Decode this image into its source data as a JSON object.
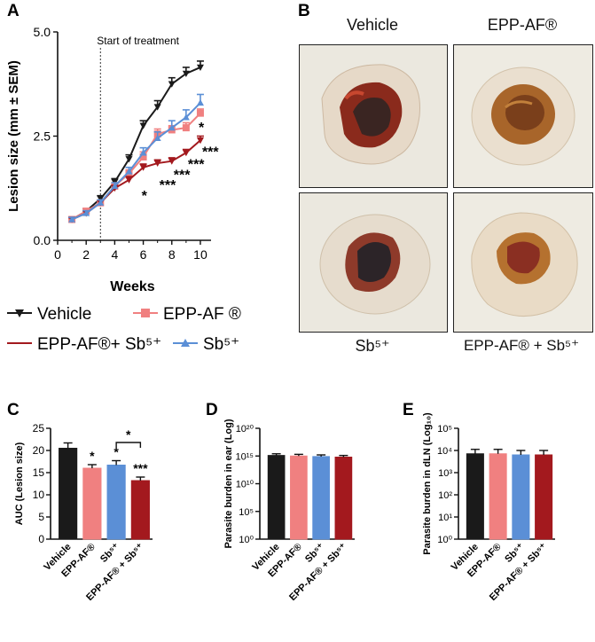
{
  "panels": {
    "A": "A",
    "B": "B",
    "C": "C",
    "D": "D",
    "E": "E"
  },
  "colors": {
    "vehicle": "#1a1a1a",
    "epp": "#f08080",
    "sb": "#5b8fd6",
    "combo": "#a3191e"
  },
  "photos": {
    "vehicle": "Vehicle",
    "epp": "EPP-AF®",
    "sb": "Sb⁵⁺",
    "combo": "EPP-AF® + Sb⁵⁺"
  },
  "chart_data": [
    {
      "id": "A",
      "type": "line",
      "title": "",
      "annotation": "Start of treatment",
      "annotation_x": 3,
      "xlabel": "Weeks",
      "ylabel": "Lesion size (mm ± SEM)",
      "xlim": [
        0,
        10.5
      ],
      "ylim": [
        0,
        5.0
      ],
      "xticks": [
        "0",
        "2",
        "4",
        "6",
        "8",
        "10"
      ],
      "yticks": [
        "0.0",
        "2.5",
        "5.0"
      ],
      "x": [
        1,
        2,
        3,
        4,
        5,
        6,
        7,
        8,
        9,
        10
      ],
      "series": [
        {
          "name": "Vehicle",
          "key": "vehicle",
          "marker": "tri-down",
          "values": [
            0.5,
            0.7,
            1.0,
            1.4,
            1.95,
            2.75,
            3.2,
            3.75,
            4.0,
            4.15
          ],
          "err": [
            0.05,
            0.06,
            0.07,
            0.08,
            0.1,
            0.12,
            0.15,
            0.15,
            0.15,
            0.15
          ]
        },
        {
          "name": "EPP-AF®",
          "key": "epp",
          "marker": "square",
          "values": [
            0.5,
            0.7,
            0.9,
            1.3,
            1.6,
            2.0,
            2.55,
            2.65,
            2.7,
            3.05
          ],
          "err": [
            0.05,
            0.06,
            0.07,
            0.08,
            0.09,
            0.12,
            0.12,
            0.1,
            0.12,
            0.1
          ]
        },
        {
          "name": "EPP-AF®+ Sb⁵⁺",
          "key": "combo",
          "marker": "tri-down",
          "values": [
            0.5,
            0.65,
            0.9,
            1.25,
            1.45,
            1.75,
            1.85,
            1.9,
            2.1,
            2.4
          ],
          "err": [
            0.04,
            0.05,
            0.06,
            0.07,
            0.08,
            0.08,
            0.08,
            0.08,
            0.08,
            0.1
          ]
        },
        {
          "name": "Sb⁵⁺",
          "key": "sb",
          "marker": "tri-up",
          "values": [
            0.5,
            0.65,
            0.9,
            1.3,
            1.65,
            2.1,
            2.45,
            2.7,
            2.95,
            3.3
          ],
          "err": [
            0.05,
            0.06,
            0.07,
            0.08,
            0.1,
            0.12,
            0.15,
            0.17,
            0.18,
            0.2
          ]
        }
      ],
      "significance": [
        {
          "text": "*",
          "x": 10,
          "y": 2.72
        },
        {
          "text": "***",
          "x": 10,
          "y": 2.14
        },
        {
          "text": "***",
          "x": 9,
          "y": 1.84
        },
        {
          "text": "***",
          "x": 8,
          "y": 1.58
        },
        {
          "text": "***",
          "x": 7,
          "y": 1.34
        },
        {
          "text": "*",
          "x": 6,
          "y": 1.08
        }
      ],
      "legend": [
        {
          "label": "Vehicle",
          "key": "vehicle",
          "marker": "tri-down"
        },
        {
          "label": "EPP-AF ®",
          "key": "epp",
          "marker": "square"
        },
        {
          "label": "EPP-AF®+ Sb⁵⁺",
          "key": "combo",
          "marker": "none"
        },
        {
          "label": "Sb⁵⁺",
          "key": "sb",
          "marker": "tri-up"
        }
      ]
    },
    {
      "id": "C",
      "type": "bar",
      "ylabel": "AUC (Lesion size)",
      "ylim": [
        0,
        25
      ],
      "yticks": [
        "0",
        "5",
        "10",
        "15",
        "20",
        "25"
      ],
      "categories": [
        "Vehicle",
        "EPP-AF®",
        "Sb⁵⁺",
        "EPP-AF® + Sb⁵⁺"
      ],
      "values": [
        20.5,
        16.0,
        16.7,
        13.2
      ],
      "err": [
        1.2,
        0.8,
        1.0,
        0.8
      ],
      "stars": [
        "",
        "*",
        "*",
        "***"
      ],
      "bracket": {
        "from": 2,
        "to": 3,
        "y": 21.8,
        "text": "*"
      }
    },
    {
      "id": "D",
      "type": "bar",
      "ylabel": "Parasite burden in ear (Log)",
      "log": true,
      "ylim_exp": [
        0,
        20
      ],
      "yticks": [
        "10⁰",
        "10⁵",
        "10¹⁰",
        "10¹⁵",
        "10²⁰"
      ],
      "categories": [
        "Vehicle",
        "EPP-AF®",
        "Sb⁵⁺",
        "EPP-AF® + Sb⁵⁺"
      ],
      "values_exp": [
        15.1,
        15.0,
        14.9,
        14.8
      ],
      "err_exp": [
        0.3,
        0.3,
        0.3,
        0.3
      ]
    },
    {
      "id": "E",
      "type": "bar",
      "ylabel": "Parasite burden in dLN (Log₁₀)",
      "log": true,
      "ylim_exp": [
        0,
        5
      ],
      "yticks": [
        "10⁰",
        "10¹",
        "10²",
        "10³",
        "10⁴",
        "10⁵"
      ],
      "categories": [
        "Vehicle",
        "EPP-AF®",
        "Sb⁵⁺",
        "EPP-AF® + Sb⁵⁺"
      ],
      "values_exp": [
        3.85,
        3.85,
        3.8,
        3.8
      ],
      "err_exp": [
        0.2,
        0.2,
        0.2,
        0.2
      ]
    }
  ]
}
